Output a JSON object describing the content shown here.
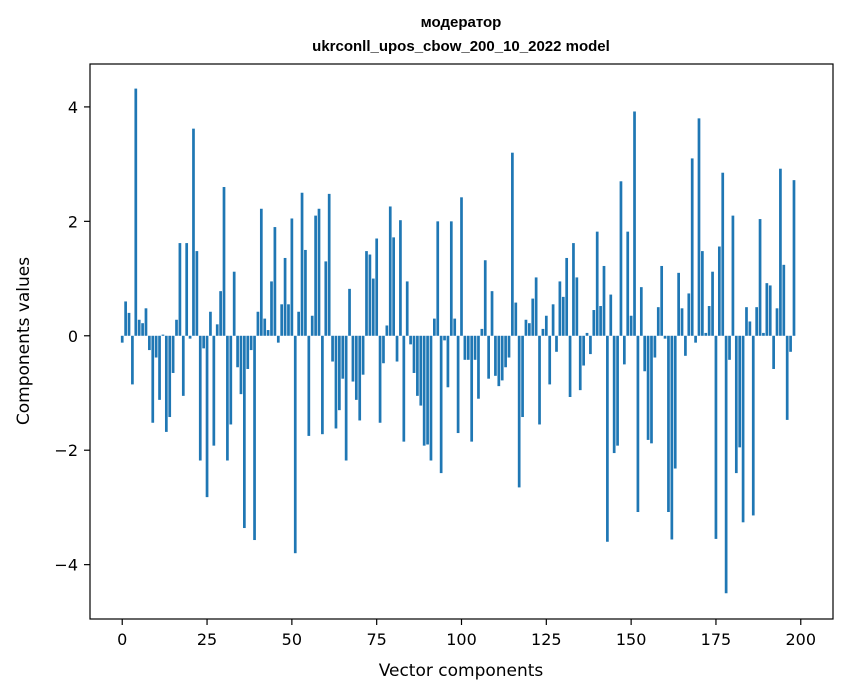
{
  "chart_data": {
    "type": "bar",
    "title": "модератор",
    "subtitle": "ukrconll_upos_cbow_200_10_2022 model",
    "xlabel": "Vector components",
    "ylabel": "Components values",
    "xlim": [
      -9.5,
      209.5
    ],
    "ylim": [
      -4.95,
      4.75
    ],
    "xticks": [
      0,
      25,
      50,
      75,
      100,
      125,
      150,
      175,
      200
    ],
    "yticks": [
      -4,
      -2,
      0,
      2,
      4
    ],
    "ytick_labels": [
      "−4",
      "−2",
      "0",
      "2",
      "4"
    ],
    "bar_color": "#1f77b4",
    "grid": false,
    "values": [
      -0.12,
      0.6,
      0.4,
      -0.85,
      4.32,
      0.28,
      0.22,
      0.48,
      -0.25,
      -1.52,
      -0.38,
      -1.12,
      0.02,
      -1.68,
      -1.42,
      -0.65,
      0.28,
      1.62,
      -1.05,
      1.62,
      -0.05,
      3.62,
      1.48,
      -2.18,
      -0.22,
      -2.82,
      0.42,
      -1.92,
      0.2,
      0.78,
      2.6,
      -2.18,
      -1.55,
      1.12,
      -0.55,
      -1.02,
      -3.36,
      -0.58,
      -0.25,
      -3.57,
      0.42,
      2.22,
      0.3,
      0.1,
      0.95,
      1.9,
      -0.12,
      0.55,
      1.36,
      0.55,
      2.05,
      -3.8,
      0.42,
      2.5,
      1.5,
      -1.75,
      0.35,
      2.1,
      2.22,
      -1.72,
      1.3,
      2.48,
      -0.45,
      -1.62,
      -1.3,
      -0.75,
      -2.18,
      0.82,
      -0.8,
      -1.12,
      -1.48,
      -0.68,
      1.48,
      1.42,
      1.0,
      1.7,
      -1.52,
      -0.48,
      0.18,
      2.26,
      1.72,
      -0.45,
      2.02,
      -1.85,
      0.95,
      -0.15,
      -0.65,
      -1.05,
      -1.22,
      -1.92,
      -1.9,
      -2.18,
      0.3,
      2.0,
      -2.4,
      -0.08,
      -0.9,
      2.0,
      0.3,
      -1.7,
      2.42,
      -0.42,
      -0.42,
      -1.85,
      -0.42,
      -1.1,
      0.12,
      1.32,
      -0.75,
      0.78,
      -0.7,
      -0.88,
      -0.78,
      -0.55,
      -0.38,
      3.2,
      0.58,
      -2.65,
      -1.42,
      0.28,
      0.22,
      0.65,
      1.02,
      -1.55,
      0.12,
      0.35,
      -0.85,
      0.55,
      -0.28,
      0.95,
      0.68,
      1.36,
      -1.07,
      1.62,
      1.02,
      -0.95,
      -0.52,
      0.05,
      -0.32,
      0.45,
      1.82,
      0.52,
      1.22,
      -3.6,
      0.72,
      -2.05,
      -1.92,
      2.7,
      -0.5,
      1.82,
      0.35,
      3.92,
      -3.08,
      0.85,
      -0.62,
      -1.82,
      -1.88,
      -0.38,
      0.5,
      1.22,
      -0.05,
      -3.08,
      -3.56,
      -2.32,
      1.1,
      0.48,
      -0.35,
      0.74,
      3.1,
      -0.12,
      3.8,
      1.48,
      0.05,
      0.52,
      1.12,
      -3.55,
      1.56,
      2.85,
      -4.5,
      -0.42,
      2.1,
      -2.4,
      -1.95,
      -3.26,
      0.5,
      0.25,
      -3.14,
      0.5,
      2.04,
      0.05,
      0.92,
      0.88,
      -0.58,
      0.48,
      2.92,
      1.24,
      -1.47,
      -0.28,
      2.72
    ]
  }
}
